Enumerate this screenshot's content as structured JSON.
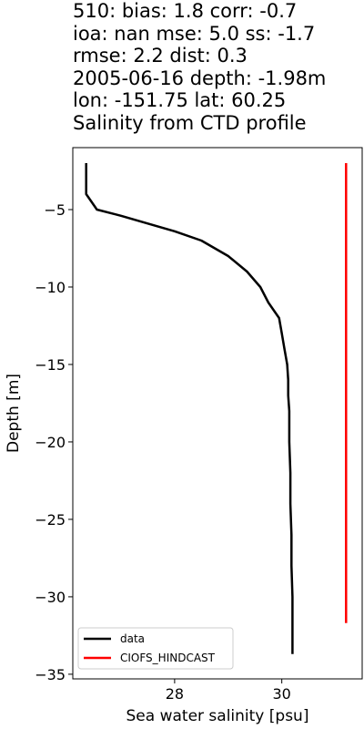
{
  "header": {
    "lines": [
      "510: bias: 1.8  corr: -0.7",
      "ioa: nan  mse: 5.0  ss: -1.7",
      "rmse: 2.2  dist: 0.3",
      "2005-06-16 depth: -1.98m",
      "lon: -151.75 lat: 60.25",
      "Salinity from CTD profile"
    ]
  },
  "chart_data": {
    "type": "line",
    "xlabel": "Sea water salinity [psu]",
    "ylabel": "Depth [m]",
    "xlim": [
      26.1,
      31.5
    ],
    "ylim": [
      -35.3,
      -1.0
    ],
    "xticks": [
      28,
      30
    ],
    "yticks": [
      -5,
      -10,
      -15,
      -20,
      -25,
      -30,
      -35
    ],
    "grid": false,
    "legend_position": "lower-left",
    "series": [
      {
        "name": "data",
        "color": "#000000",
        "x": [
          26.35,
          26.35,
          26.35,
          26.35,
          26.55,
          27.0,
          27.5,
          28.0,
          28.5,
          29.0,
          29.35,
          29.6,
          29.75,
          29.95,
          30.0,
          30.05,
          30.1,
          30.12,
          30.12,
          30.14,
          30.14,
          30.16,
          30.16,
          30.18,
          30.18,
          30.2,
          30.2,
          30.2
        ],
        "y": [
          -2.0,
          -2.5,
          -3.0,
          -4.0,
          -5.0,
          -5.4,
          -5.9,
          -6.4,
          -7.0,
          -8.0,
          -9.0,
          -10.0,
          -11.0,
          -12.0,
          -13.0,
          -14.0,
          -15.0,
          -16.0,
          -17.0,
          -18.0,
          -20.0,
          -22.0,
          -24.0,
          -26.0,
          -28.0,
          -30.0,
          -32.0,
          -33.7
        ]
      },
      {
        "name": "CIOFS_HINDCAST",
        "color": "#ff0000",
        "x": [
          31.2,
          31.2
        ],
        "y": [
          -2.0,
          -31.7
        ]
      }
    ]
  }
}
